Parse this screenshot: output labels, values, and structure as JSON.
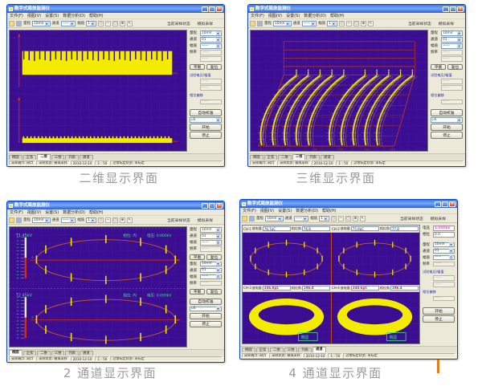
{
  "page": {
    "background": "#ffffff",
    "captions": {
      "c1": "二维显示界面",
      "c2": "三维显示界面",
      "c3": "2 通道显示界面",
      "c4": "4 通道显示界面"
    }
  },
  "chrome": {
    "title": "数字式局放监测仪",
    "menu": [
      "文件(F)",
      "视图(V)",
      "设置(S)",
      "数据分析(D)",
      "帮助(H)"
    ],
    "toolbar": {
      "icons": [
        "open-icon",
        "save-icon"
      ],
      "range_label": "量程",
      "range_value": "10mV",
      "channel_label": "通道",
      "channel_value": "——",
      "amp_label": "幅值",
      "amp_value": "1",
      "tool_icons": [
        "circle-icon",
        "minus-icon",
        "rect-icon",
        "zoom-icon",
        "pointer-icon"
      ],
      "tool_glyphs": [
        "○",
        "−",
        "▢",
        "⊕",
        "↖"
      ],
      "status_label": "当前采样状态",
      "mode_label": "模拟采样"
    },
    "tabs": [
      "椭圆",
      "正弦",
      "二维",
      "三维",
      "列表",
      "通道"
    ],
    "selected_tab": {
      "w1": 2,
      "w2": 3,
      "w3": 0,
      "w4": 5
    },
    "status": [
      "采样端口: 网口",
      "采样状态: 模拟采样",
      "2010-12-10",
      "1 : 50",
      "过零标定状态: 未标定"
    ]
  },
  "panel": {
    "range_label": "量程",
    "range_value": "10mV",
    "channel_label": "通道",
    "channel_value": "01",
    "amp_label": "幅值",
    "amp_value": "——",
    "freq_label": "频率",
    "freq_value": "——",
    "extra_value": "——",
    "balance_label": "平衡",
    "reset_label": "复位",
    "volt_group_label": "试验电压/幅值",
    "volt_field1": "——",
    "volt_field2": "——",
    "phase_group_label": "相位偏移",
    "phase_field": "——",
    "autocal_label": "自动校准",
    "unit_value": "uS",
    "start_label": "开始",
    "stop_label": "停止"
  },
  "ch2": {
    "panels": [
      {
        "tag": "T1 45kV",
        "phase": "相位: 内",
        "volt": "电压: 0.000kV"
      },
      {
        "tag": "T2 45kV",
        "phase": "相位: 内",
        "volt": "电压: 0.000kV"
      }
    ]
  },
  "ch4": {
    "volt_label": "电压",
    "volt_value": "1.000kV",
    "phase_label": "相位",
    "phase_value": "0.0",
    "q_label": "放电量",
    "p_label": "相位角",
    "quads": [
      {
        "ch": "CH-1",
        "q": "76.7pC",
        "p": "76.8"
      },
      {
        "ch": "CH-2",
        "q": "75.9pC",
        "p": "77.8"
      },
      {
        "ch": "CH-3",
        "q": "346.8pC",
        "p": "196.4"
      },
      {
        "ch": "CH-4",
        "q": "348.6pC",
        "p": "196.4"
      }
    ],
    "ring_label": "椭圆"
  },
  "colors": {
    "plot_bg": "#3a0d91",
    "grid": "#5b2bb4",
    "wave": "#f4ec00",
    "axis": "#d02c12",
    "wire": "#c83c14",
    "ellipse": "#b85a28",
    "green": "#35e87c",
    "pink": "#ff5fd0",
    "blue_label": "#2222cc",
    "divider": "#c0451c",
    "caption": "#9a9a9a",
    "orange_mark": "#e87b1e"
  },
  "plots": {
    "p2d": {
      "type": "area",
      "description": "dense pulse band upper trace + thin baseline band lower trace",
      "teeth": 28,
      "bumps": 40
    },
    "p3d": {
      "type": "area",
      "description": "3D waterfall of discharge pulses in red wire box",
      "traces": 10,
      "wall_lines": 5,
      "floor_lines": 6,
      "x_ticks": [
        "0",
        "50",
        "100",
        "150",
        "200",
        "250"
      ]
    },
    "ch2": {
      "type": "scatter",
      "description": "phase ellipse with 12 pulse markers per channel",
      "ellipse_ticks": 12
    },
    "ch4": {
      "type": "scatter",
      "description": "four quadrants: thin ellipses (CH1,CH2) and thick yellow rings (CH3,CH4)",
      "ellipse_ticks": 12
    }
  }
}
